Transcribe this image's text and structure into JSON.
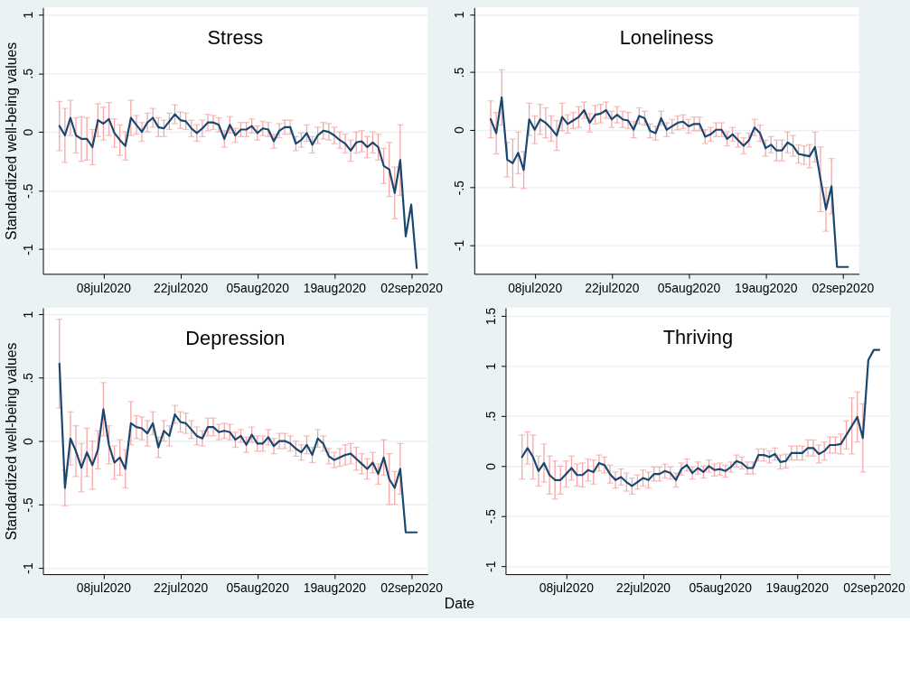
{
  "chart_data": [
    {
      "type": "line",
      "title": "Stress",
      "ylabel": "Standardized well-being values",
      "x": [
        "2020-06-30",
        "2020-07-01",
        "2020-07-02",
        "2020-07-03",
        "2020-07-04",
        "2020-07-05",
        "2020-07-06",
        "2020-07-07",
        "2020-07-08",
        "2020-07-09",
        "2020-07-10",
        "2020-07-11",
        "2020-07-12",
        "2020-07-13",
        "2020-07-14",
        "2020-07-15",
        "2020-07-16",
        "2020-07-17",
        "2020-07-18",
        "2020-07-19",
        "2020-07-20",
        "2020-07-21",
        "2020-07-22",
        "2020-07-23",
        "2020-07-24",
        "2020-07-25",
        "2020-07-26",
        "2020-07-27",
        "2020-07-28",
        "2020-07-29",
        "2020-07-30",
        "2020-07-31",
        "2020-08-01",
        "2020-08-02",
        "2020-08-03",
        "2020-08-04",
        "2020-08-05",
        "2020-08-06",
        "2020-08-07",
        "2020-08-08",
        "2020-08-09",
        "2020-08-10",
        "2020-08-11",
        "2020-08-12",
        "2020-08-13",
        "2020-08-14",
        "2020-08-15",
        "2020-08-16",
        "2020-08-17",
        "2020-08-18",
        "2020-08-19",
        "2020-08-20",
        "2020-08-21",
        "2020-08-22",
        "2020-08-23",
        "2020-08-24",
        "2020-08-25",
        "2020-08-26",
        "2020-08-27",
        "2020-08-28",
        "2020-08-29",
        "2020-08-30",
        "2020-08-31",
        "2020-09-01",
        "2020-09-02",
        "2020-09-03"
      ],
      "series": [
        {
          "color": "#1a476f",
          "values": [
            0.05,
            -0.03,
            0.12,
            -0.03,
            -0.06,
            -0.06,
            -0.13,
            0.1,
            0.07,
            0.11,
            -0.01,
            -0.07,
            -0.12,
            0.12,
            0.06,
            0.0,
            0.08,
            0.12,
            0.04,
            0.03,
            0.09,
            0.15,
            0.1,
            0.09,
            0.03,
            -0.01,
            0.03,
            0.08,
            0.08,
            0.06,
            -0.06,
            0.06,
            -0.03,
            0.02,
            0.02,
            0.05,
            -0.01,
            0.03,
            0.02,
            -0.08,
            0.01,
            0.04,
            0.04,
            -0.1,
            -0.07,
            -0.01,
            -0.11,
            -0.03,
            0.01,
            0.0,
            -0.03,
            -0.07,
            -0.1,
            -0.16,
            -0.09,
            -0.08,
            -0.13,
            -0.09,
            -0.13,
            -0.29,
            -0.32,
            -0.52,
            -0.24,
            -0.89,
            -0.62,
            -1.16
          ],
          "errors": [
            0.21,
            0.23,
            0.15,
            0.15,
            0.19,
            0.18,
            0.15,
            0.14,
            0.14,
            0.14,
            0.12,
            0.13,
            0.12,
            0.15,
            0.08,
            0.08,
            0.08,
            0.08,
            0.08,
            0.07,
            0.07,
            0.08,
            0.07,
            0.07,
            0.07,
            0.07,
            0.07,
            0.07,
            0.06,
            0.06,
            0.07,
            0.07,
            0.06,
            0.06,
            0.06,
            0.06,
            0.06,
            0.06,
            0.06,
            0.06,
            0.06,
            0.06,
            0.06,
            0.06,
            0.06,
            0.07,
            0.07,
            0.07,
            0.07,
            0.07,
            0.07,
            0.07,
            0.08,
            0.09,
            0.09,
            0.09,
            0.09,
            0.09,
            0.11,
            0.15,
            0.23,
            0.22,
            0.3,
            null,
            null,
            null
          ]
        }
      ],
      "xlim": [
        "2020-06-27",
        "2020-09-05"
      ],
      "xticks": [
        {
          "value": "2020-07-08",
          "label": "08jul2020"
        },
        {
          "value": "2020-07-22",
          "label": "22jul2020"
        },
        {
          "value": "2020-08-05",
          "label": "05aug2020"
        },
        {
          "value": "2020-08-19",
          "label": "19aug2020"
        },
        {
          "value": "2020-09-02",
          "label": "02sep2020"
        }
      ],
      "ylim": [
        -1.21,
        1.06
      ],
      "yticks": [
        {
          "value": -1,
          "label": "-1"
        },
        {
          "value": -0.5,
          "label": "-.5"
        },
        0,
        {
          "value": 0.5,
          "label": ".5"
        },
        1
      ],
      "grid": "y"
    },
    {
      "type": "line",
      "title": "Loneliness",
      "x": [
        "2020-06-30",
        "2020-07-01",
        "2020-07-02",
        "2020-07-03",
        "2020-07-04",
        "2020-07-05",
        "2020-07-06",
        "2020-07-07",
        "2020-07-08",
        "2020-07-09",
        "2020-07-10",
        "2020-07-11",
        "2020-07-12",
        "2020-07-13",
        "2020-07-14",
        "2020-07-15",
        "2020-07-16",
        "2020-07-17",
        "2020-07-18",
        "2020-07-19",
        "2020-07-20",
        "2020-07-21",
        "2020-07-22",
        "2020-07-23",
        "2020-07-24",
        "2020-07-25",
        "2020-07-26",
        "2020-07-27",
        "2020-07-28",
        "2020-07-29",
        "2020-07-30",
        "2020-07-31",
        "2020-08-01",
        "2020-08-02",
        "2020-08-03",
        "2020-08-04",
        "2020-08-05",
        "2020-08-06",
        "2020-08-07",
        "2020-08-08",
        "2020-08-09",
        "2020-08-10",
        "2020-08-11",
        "2020-08-12",
        "2020-08-13",
        "2020-08-14",
        "2020-08-15",
        "2020-08-16",
        "2020-08-17",
        "2020-08-18",
        "2020-08-19",
        "2020-08-20",
        "2020-08-21",
        "2020-08-22",
        "2020-08-23",
        "2020-08-24",
        "2020-08-25",
        "2020-08-26",
        "2020-08-27",
        "2020-08-28",
        "2020-08-29",
        "2020-08-30",
        "2020-08-31",
        "2020-09-01",
        "2020-09-02",
        "2020-09-03"
      ],
      "series": [
        {
          "color": "#1a476f",
          "values": [
            0.09,
            -0.03,
            0.28,
            -0.26,
            -0.29,
            -0.2,
            -0.35,
            0.09,
            0.0,
            0.09,
            0.06,
            0.01,
            -0.05,
            0.11,
            0.05,
            0.08,
            0.11,
            0.17,
            0.06,
            0.13,
            0.14,
            0.17,
            0.09,
            0.13,
            0.09,
            0.08,
            0.0,
            0.12,
            0.1,
            -0.01,
            -0.03,
            0.1,
            0.0,
            0.03,
            0.06,
            0.07,
            0.03,
            0.05,
            0.05,
            -0.06,
            -0.04,
            0.0,
            0.0,
            -0.08,
            -0.04,
            -0.09,
            -0.14,
            -0.09,
            0.02,
            -0.03,
            -0.16,
            -0.13,
            -0.18,
            -0.18,
            -0.11,
            -0.14,
            -0.21,
            -0.22,
            -0.23,
            -0.15,
            -0.43,
            -0.69,
            -0.49,
            -1.19,
            -1.19,
            -1.19
          ],
          "errors": [
            0.16,
            0.18,
            0.24,
            0.15,
            0.21,
            0.18,
            0.16,
            0.14,
            0.12,
            0.13,
            0.13,
            0.11,
            0.13,
            0.12,
            0.08,
            0.07,
            0.09,
            0.07,
            0.08,
            0.08,
            0.08,
            0.07,
            0.07,
            0.07,
            0.07,
            0.07,
            0.07,
            0.07,
            0.06,
            0.06,
            0.06,
            0.06,
            0.06,
            0.06,
            0.06,
            0.06,
            0.06,
            0.06,
            0.06,
            0.06,
            0.06,
            0.06,
            0.06,
            0.06,
            0.06,
            0.06,
            0.07,
            0.06,
            0.07,
            0.07,
            0.07,
            0.07,
            0.09,
            0.09,
            0.09,
            0.09,
            0.08,
            0.08,
            0.1,
            0.13,
            0.28,
            0.19,
            0.24,
            null,
            null,
            null
          ]
        }
      ],
      "xlim": [
        "2020-06-27",
        "2020-09-05"
      ],
      "xticks": [
        {
          "value": "2020-07-08",
          "label": "08jul2020"
        },
        {
          "value": "2020-07-22",
          "label": "22jul2020"
        },
        {
          "value": "2020-08-05",
          "label": "05aug2020"
        },
        {
          "value": "2020-08-19",
          "label": "19aug2020"
        },
        {
          "value": "2020-09-02",
          "label": "02sep2020"
        }
      ],
      "ylim": [
        -1.25,
        1.06
      ],
      "yticks": [
        {
          "value": -1,
          "label": "-1"
        },
        {
          "value": -0.5,
          "label": "-.5"
        },
        0,
        {
          "value": 0.5,
          "label": ".5"
        },
        1
      ],
      "grid": "y"
    },
    {
      "type": "line",
      "title": "Depression",
      "ylabel": "Standardized well-being values",
      "xlabel": "Date",
      "x": [
        "2020-06-30",
        "2020-07-01",
        "2020-07-02",
        "2020-07-03",
        "2020-07-04",
        "2020-07-05",
        "2020-07-06",
        "2020-07-07",
        "2020-07-08",
        "2020-07-09",
        "2020-07-10",
        "2020-07-11",
        "2020-07-12",
        "2020-07-13",
        "2020-07-14",
        "2020-07-15",
        "2020-07-16",
        "2020-07-17",
        "2020-07-18",
        "2020-07-19",
        "2020-07-20",
        "2020-07-21",
        "2020-07-22",
        "2020-07-23",
        "2020-07-24",
        "2020-07-25",
        "2020-07-26",
        "2020-07-27",
        "2020-07-28",
        "2020-07-29",
        "2020-07-30",
        "2020-07-31",
        "2020-08-01",
        "2020-08-02",
        "2020-08-03",
        "2020-08-04",
        "2020-08-05",
        "2020-08-06",
        "2020-08-07",
        "2020-08-08",
        "2020-08-09",
        "2020-08-10",
        "2020-08-11",
        "2020-08-12",
        "2020-08-13",
        "2020-08-14",
        "2020-08-15",
        "2020-08-16",
        "2020-08-17",
        "2020-08-18",
        "2020-08-19",
        "2020-08-20",
        "2020-08-21",
        "2020-08-22",
        "2020-08-23",
        "2020-08-24",
        "2020-08-25",
        "2020-08-26",
        "2020-08-27",
        "2020-08-28",
        "2020-08-29",
        "2020-08-30",
        "2020-08-31",
        "2020-09-01",
        "2020-09-02",
        "2020-09-03"
      ],
      "series": [
        {
          "color": "#1a476f",
          "values": [
            0.61,
            -0.37,
            0.02,
            -0.08,
            -0.21,
            -0.09,
            -0.19,
            -0.07,
            0.25,
            -0.03,
            -0.17,
            -0.13,
            -0.22,
            0.14,
            0.11,
            0.1,
            0.06,
            0.14,
            -0.05,
            0.08,
            0.04,
            0.21,
            0.15,
            0.14,
            0.09,
            0.04,
            0.02,
            0.11,
            0.11,
            0.07,
            0.08,
            0.07,
            0.01,
            0.04,
            -0.03,
            0.05,
            -0.02,
            -0.02,
            0.03,
            -0.04,
            0.0,
            0.0,
            -0.02,
            -0.06,
            -0.09,
            -0.03,
            -0.11,
            0.02,
            -0.02,
            -0.12,
            -0.15,
            -0.13,
            -0.11,
            -0.1,
            -0.14,
            -0.18,
            -0.22,
            -0.17,
            -0.26,
            -0.13,
            -0.3,
            -0.37,
            -0.22,
            -0.72,
            -0.72,
            -0.72
          ],
          "errors": [
            0.35,
            0.14,
            0.21,
            0.2,
            0.19,
            0.19,
            0.19,
            0.15,
            0.21,
            0.15,
            0.13,
            0.14,
            0.15,
            0.17,
            0.09,
            0.09,
            0.1,
            0.09,
            0.08,
            0.08,
            0.08,
            0.07,
            0.08,
            0.08,
            0.07,
            0.07,
            0.06,
            0.07,
            0.07,
            0.06,
            0.06,
            0.06,
            0.06,
            0.05,
            0.06,
            0.06,
            0.06,
            0.06,
            0.06,
            0.06,
            0.06,
            0.06,
            0.06,
            0.06,
            0.06,
            0.07,
            0.06,
            0.07,
            0.06,
            0.06,
            0.06,
            0.07,
            0.08,
            0.08,
            0.09,
            0.08,
            0.08,
            0.08,
            0.08,
            0.14,
            0.2,
            0.13,
            0.2,
            null,
            null,
            null
          ]
        }
      ],
      "xlim": [
        "2020-06-27",
        "2020-09-05"
      ],
      "xticks": [
        {
          "value": "2020-07-08",
          "label": "08jul2020"
        },
        {
          "value": "2020-07-22",
          "label": "22jul2020"
        },
        {
          "value": "2020-08-05",
          "label": "05aug2020"
        },
        {
          "value": "2020-08-19",
          "label": "19aug2020"
        },
        {
          "value": "2020-09-02",
          "label": "02sep2020"
        }
      ],
      "ylim": [
        -1.05,
        1.05
      ],
      "yticks": [
        {
          "value": -1,
          "label": "-1"
        },
        {
          "value": -0.5,
          "label": "-.5"
        },
        0,
        {
          "value": 0.5,
          "label": ".5"
        },
        1
      ],
      "grid": "y"
    },
    {
      "type": "line",
      "title": "Thriving",
      "x": [
        "2020-06-30",
        "2020-07-01",
        "2020-07-02",
        "2020-07-03",
        "2020-07-04",
        "2020-07-05",
        "2020-07-06",
        "2020-07-07",
        "2020-07-08",
        "2020-07-09",
        "2020-07-10",
        "2020-07-11",
        "2020-07-12",
        "2020-07-13",
        "2020-07-14",
        "2020-07-15",
        "2020-07-16",
        "2020-07-17",
        "2020-07-18",
        "2020-07-19",
        "2020-07-20",
        "2020-07-21",
        "2020-07-22",
        "2020-07-23",
        "2020-07-24",
        "2020-07-25",
        "2020-07-26",
        "2020-07-27",
        "2020-07-28",
        "2020-07-29",
        "2020-07-30",
        "2020-07-31",
        "2020-08-01",
        "2020-08-02",
        "2020-08-03",
        "2020-08-04",
        "2020-08-05",
        "2020-08-06",
        "2020-08-07",
        "2020-08-08",
        "2020-08-09",
        "2020-08-10",
        "2020-08-11",
        "2020-08-12",
        "2020-08-13",
        "2020-08-14",
        "2020-08-15",
        "2020-08-16",
        "2020-08-17",
        "2020-08-18",
        "2020-08-19",
        "2020-08-20",
        "2020-08-21",
        "2020-08-22",
        "2020-08-23",
        "2020-08-24",
        "2020-08-25",
        "2020-08-26",
        "2020-08-27",
        "2020-08-28",
        "2020-08-29",
        "2020-08-30",
        "2020-08-31",
        "2020-09-01",
        "2020-09-02",
        "2020-09-03"
      ],
      "series": [
        {
          "color": "#1a476f",
          "values": [
            0.09,
            0.18,
            0.09,
            -0.05,
            0.03,
            -0.09,
            -0.14,
            -0.14,
            -0.08,
            -0.02,
            -0.09,
            -0.09,
            -0.04,
            -0.06,
            0.03,
            0.01,
            -0.08,
            -0.14,
            -0.11,
            -0.16,
            -0.2,
            -0.16,
            -0.12,
            -0.14,
            -0.08,
            -0.08,
            -0.05,
            -0.07,
            -0.14,
            -0.03,
            0.01,
            -0.07,
            -0.02,
            -0.06,
            0.0,
            -0.04,
            -0.03,
            -0.05,
            -0.01,
            0.05,
            0.03,
            -0.02,
            -0.02,
            0.11,
            0.11,
            0.09,
            0.12,
            0.04,
            0.05,
            0.13,
            0.13,
            0.13,
            0.18,
            0.18,
            0.12,
            0.15,
            0.21,
            0.21,
            0.22,
            0.31,
            0.4,
            0.49,
            0.28,
            1.06,
            1.16,
            1.16
          ],
          "errors": [
            0.22,
            0.16,
            0.22,
            0.15,
            0.19,
            0.19,
            0.19,
            0.14,
            0.13,
            0.12,
            0.11,
            0.12,
            0.11,
            0.12,
            0.08,
            0.08,
            0.09,
            0.08,
            0.08,
            0.09,
            0.08,
            0.07,
            0.08,
            0.08,
            0.07,
            0.07,
            0.07,
            0.06,
            0.07,
            0.06,
            0.06,
            0.06,
            0.06,
            0.06,
            0.06,
            0.06,
            0.06,
            0.06,
            0.05,
            0.06,
            0.06,
            0.06,
            0.06,
            0.06,
            0.06,
            0.06,
            0.06,
            0.07,
            0.07,
            0.07,
            0.07,
            0.07,
            0.08,
            0.08,
            0.09,
            0.09,
            0.08,
            0.08,
            0.1,
            0.14,
            0.28,
            0.25,
            0.34,
            null,
            null,
            null
          ]
        }
      ],
      "xlim": [
        "2020-06-27",
        "2020-09-05"
      ],
      "xticks": [
        {
          "value": "2020-07-08",
          "label": "08jul2020"
        },
        {
          "value": "2020-07-22",
          "label": "22jul2020"
        },
        {
          "value": "2020-08-05",
          "label": "05aug2020"
        },
        {
          "value": "2020-08-19",
          "label": "19aug2020"
        },
        {
          "value": "2020-09-02",
          "label": "02sep2020"
        }
      ],
      "ylim": [
        -1.08,
        1.58
      ],
      "yticks": [
        {
          "value": -1,
          "label": "-1"
        },
        {
          "value": -0.5,
          "label": "-.5"
        },
        0,
        {
          "value": 0.5,
          "label": ".5"
        },
        1,
        1.5
      ],
      "grid": "y"
    }
  ]
}
